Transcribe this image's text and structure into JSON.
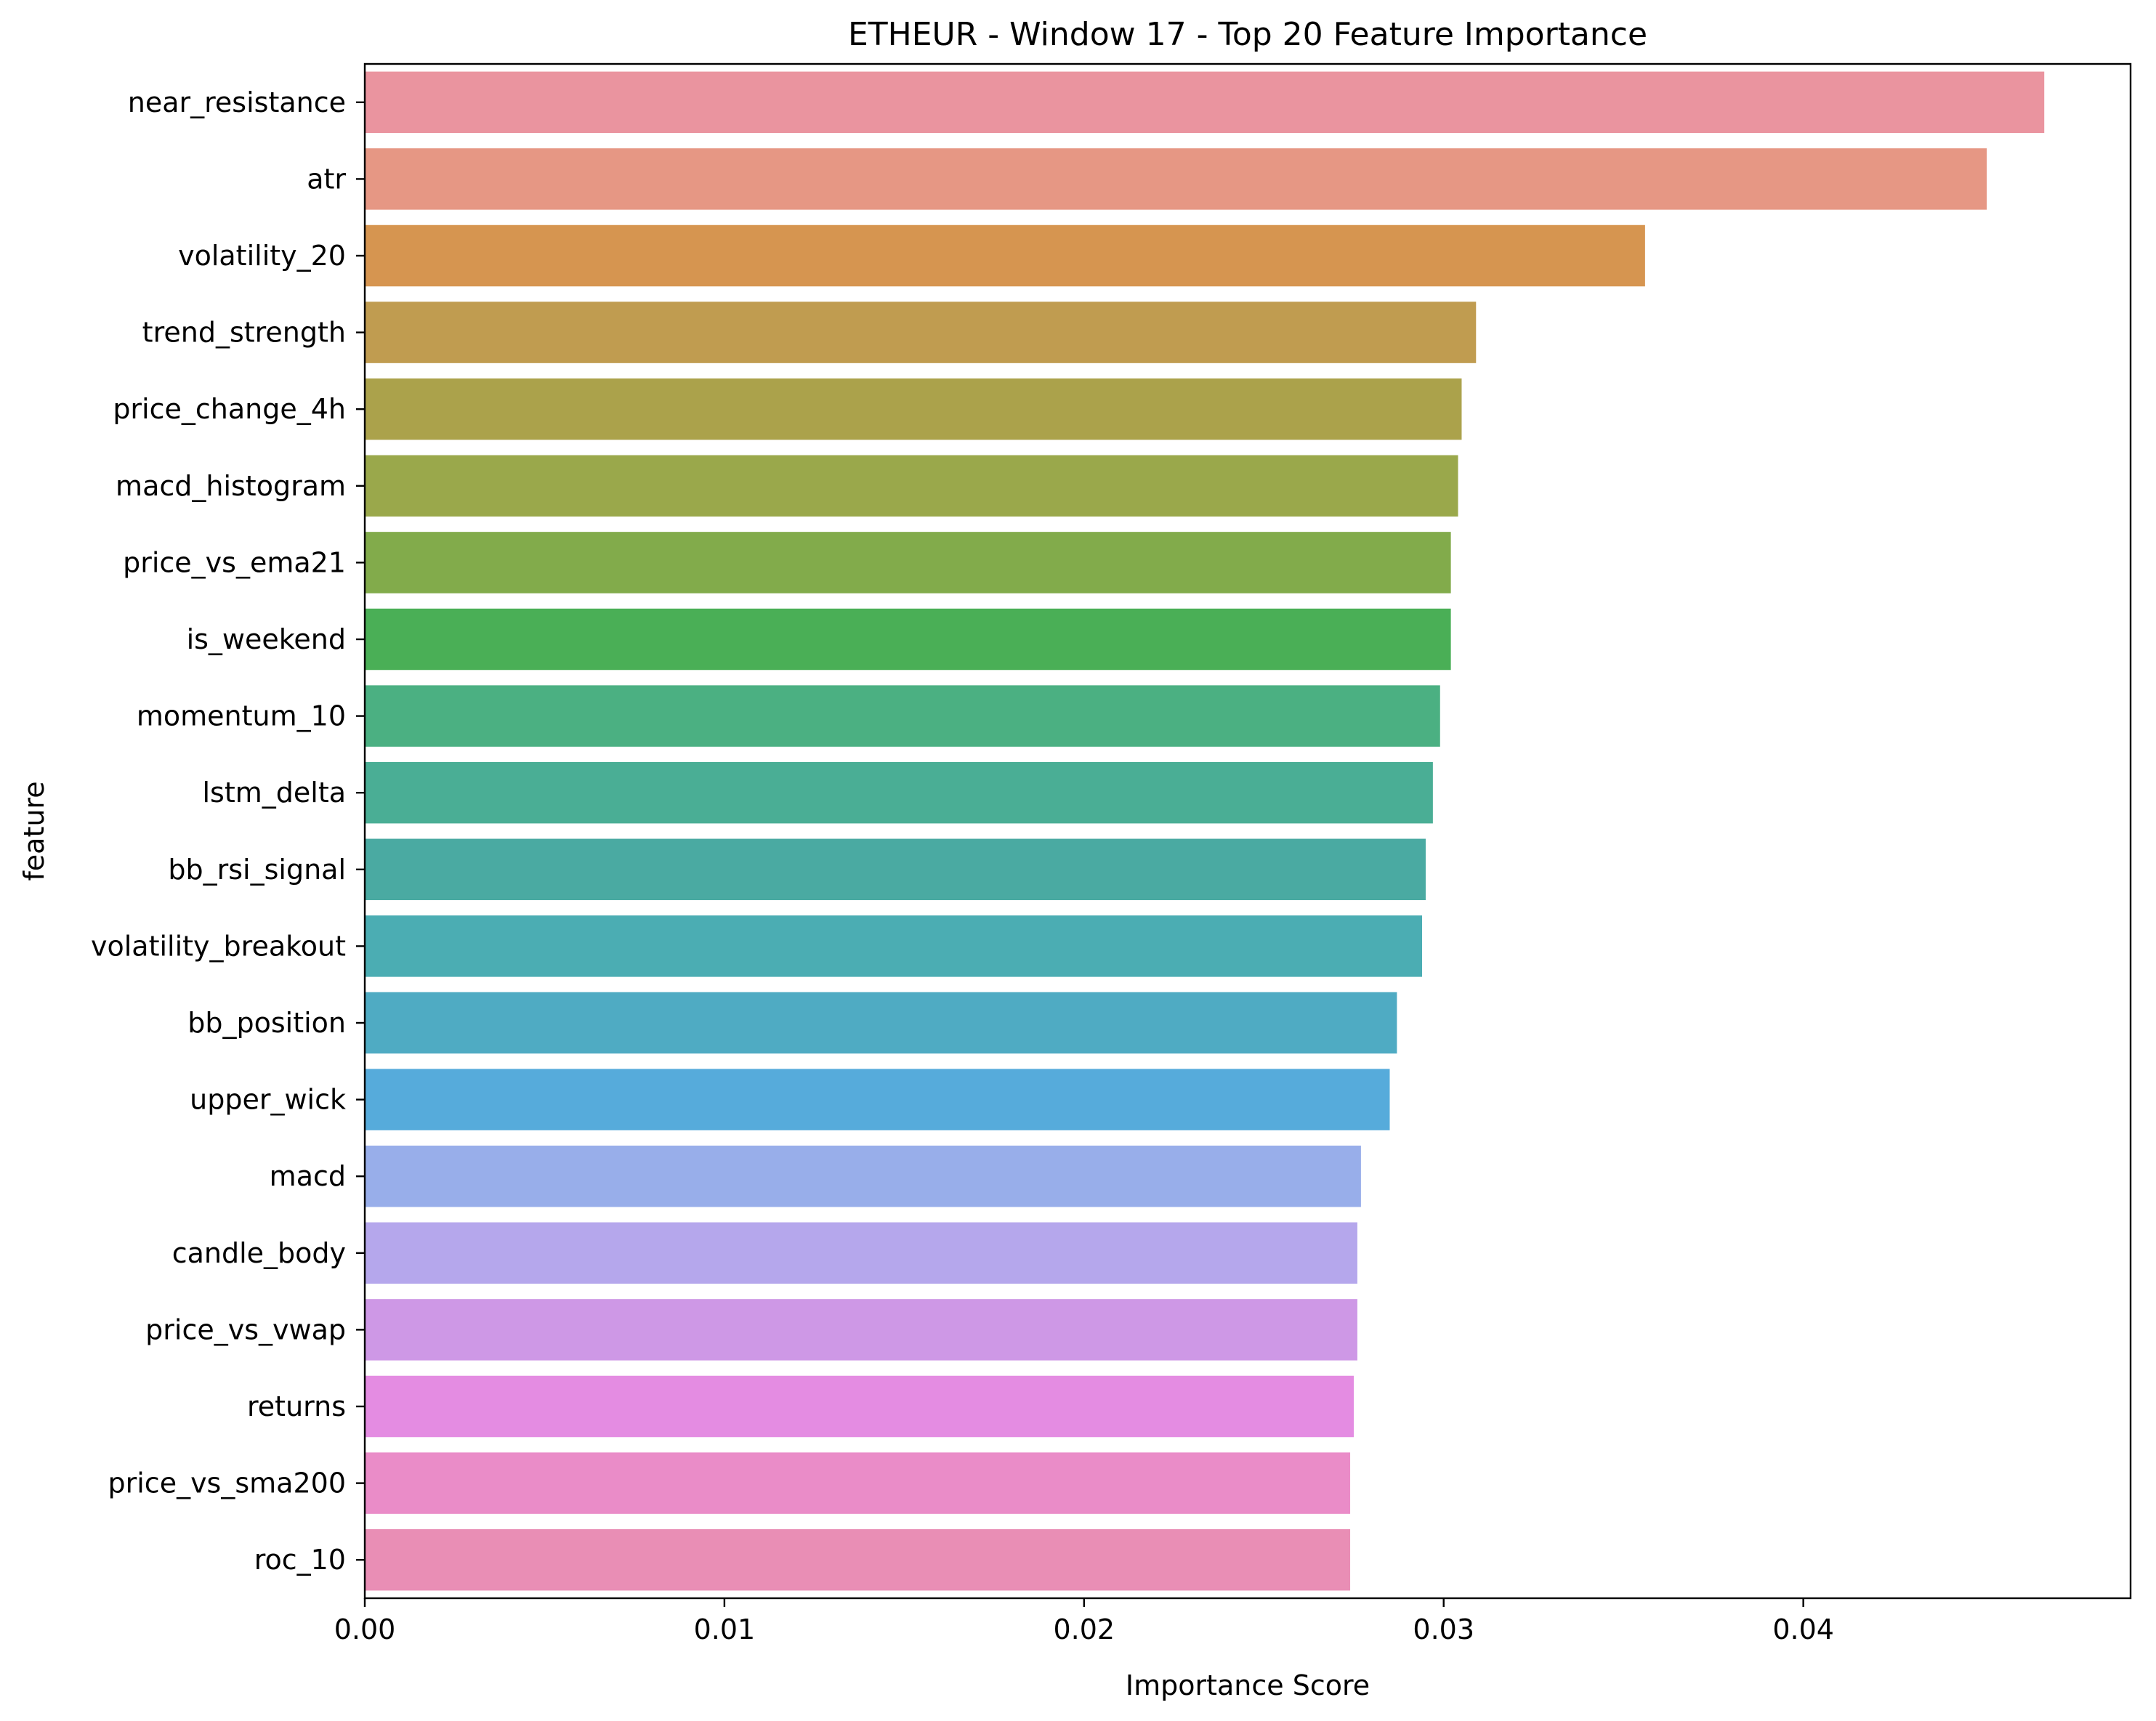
{
  "chart_data": {
    "type": "bar",
    "orientation": "horizontal",
    "title": "ETHEUR - Window 17 - Top 20 Feature Importance",
    "xlabel": "Importance Score",
    "ylabel": "feature",
    "xlim": [
      0.0,
      0.0491
    ],
    "x_ticks": [
      0.0,
      0.01,
      0.02,
      0.03,
      0.04
    ],
    "x_tick_labels": [
      "0.00",
      "0.01",
      "0.02",
      "0.03",
      "0.04"
    ],
    "grid": false,
    "legend": "none",
    "categories": [
      "near_resistance",
      "atr",
      "volatility_20",
      "trend_strength",
      "price_change_4h",
      "macd_histogram",
      "price_vs_ema21",
      "is_weekend",
      "momentum_10",
      "lstm_delta",
      "bb_rsi_signal",
      "volatility_breakout",
      "bb_position",
      "upper_wick",
      "macd",
      "candle_body",
      "price_vs_vwap",
      "returns",
      "price_vs_sma200",
      "roc_10"
    ],
    "values": [
      0.0467,
      0.0451,
      0.0356,
      0.0309,
      0.0305,
      0.0304,
      0.0302,
      0.0302,
      0.0299,
      0.0297,
      0.0295,
      0.0294,
      0.0287,
      0.0285,
      0.0277,
      0.0276,
      0.0276,
      0.0275,
      0.0274,
      0.0274
    ],
    "colors": [
      "#ea949f",
      "#e69784",
      "#d69550",
      "#c09c50",
      "#aba24b",
      "#9aa84b",
      "#82ab4b",
      "#4aaf56",
      "#4bb082",
      "#4aae95",
      "#4aaaa2",
      "#4badb3",
      "#4fabc3",
      "#56abdb",
      "#98aeea",
      "#b5a7ec",
      "#ce98e6",
      "#e48ce2",
      "#ea8cc8",
      "#e98eb5"
    ]
  }
}
